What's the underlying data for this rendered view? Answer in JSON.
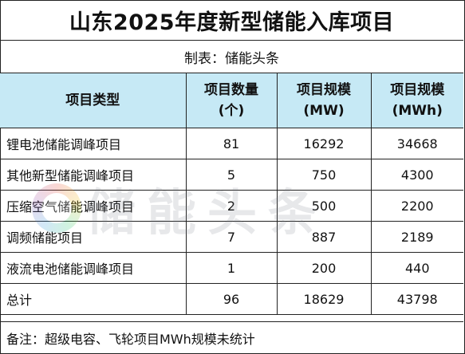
{
  "title": "山东2025年度新型储能入库项目",
  "subtitle": "制表：储能头条",
  "table": {
    "headers": [
      "项目类型",
      "项目数量\n(个)",
      "项目规模\n(MW)",
      "项目规模\n(MWh)"
    ],
    "rows": [
      [
        "锂电池储能调峰项目",
        "81",
        "16292",
        "34668"
      ],
      [
        "其他新型储能调峰项目",
        "5",
        "750",
        "4300"
      ],
      [
        "压缩空气储能调峰项目",
        "2",
        "500",
        "2200"
      ],
      [
        "调频储能项目",
        "7",
        "887",
        "2189"
      ],
      [
        "液流电池储能调峰项目",
        "1",
        "200",
        "440"
      ],
      [
        "总计",
        "96",
        "18629",
        "43798"
      ]
    ]
  },
  "note": "备注：超级电容、飞轮项目MWh规模未统计",
  "watermark": {
    "text": "储能头条",
    "icon": "logo-ring-icon"
  },
  "colors": {
    "header_bg": "#c6e9f5",
    "border": "#222222"
  }
}
